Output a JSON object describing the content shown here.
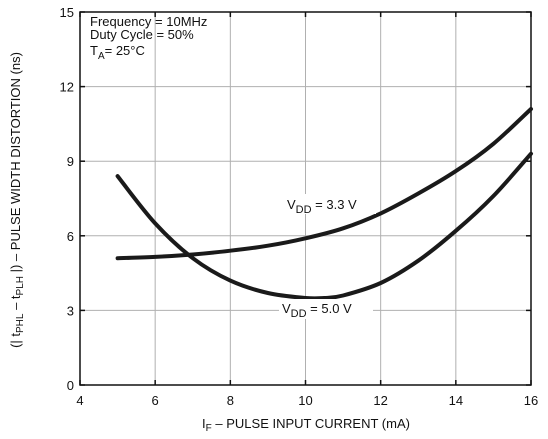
{
  "chart_data": {
    "type": "line",
    "title": "",
    "xlabel_prefix": "I",
    "xlabel_sub": "F",
    "xlabel_rest": " – PULSE INPUT CURRENT (mA)",
    "ylabel_parts": {
      "open": "(| t",
      "sub1": "PHL",
      "mid": " – t",
      "sub2": "PLH",
      "close": " |)  – PULSE WIDTH DISTORTION (ns)"
    },
    "xlim": [
      4,
      16
    ],
    "ylim": [
      0,
      15
    ],
    "x_ticks": [
      "4",
      "6",
      "8",
      "10",
      "12",
      "14",
      "16"
    ],
    "y_ticks": [
      "0",
      "3",
      "6",
      "9",
      "12",
      "15"
    ],
    "grid": true,
    "annotations": {
      "line1": "Frequency = 10MHz",
      "line2": "Duty Cycle = 50%",
      "line3_main": "T",
      "line3_sub": "A",
      "line3_rest": "= 25°C"
    },
    "series": [
      {
        "name": "VDD = 3.3 V",
        "label_main": "V",
        "label_sub": "DD",
        "label_rest": " = 3.3 V",
        "x": [
          5,
          6,
          7,
          8,
          9,
          10,
          11,
          12,
          13,
          14,
          15,
          16
        ],
        "y": [
          5.1,
          5.15,
          5.25,
          5.4,
          5.6,
          5.9,
          6.3,
          6.9,
          7.7,
          8.6,
          9.7,
          11.1
        ]
      },
      {
        "name": "VDD = 5.0 V",
        "label_main": "V",
        "label_sub": "DD",
        "label_rest": " = 5.0 V",
        "x": [
          5,
          6,
          7,
          8,
          9,
          10,
          10.5,
          11,
          12,
          13,
          14,
          15,
          16
        ],
        "y": [
          8.4,
          6.5,
          5.1,
          4.2,
          3.7,
          3.5,
          3.5,
          3.6,
          4.1,
          5.0,
          6.2,
          7.6,
          9.3
        ]
      }
    ]
  }
}
